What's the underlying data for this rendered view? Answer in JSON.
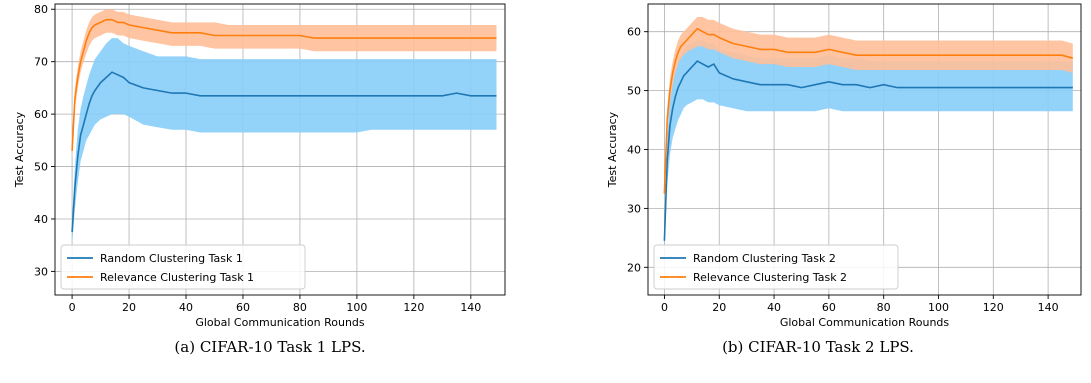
{
  "chart_data": [
    {
      "type": "line",
      "caption": "(a)  CIFAR-10 Task 1 LPS.",
      "xlabel": "Global Communication Rounds",
      "ylabel": "Test Accuracy",
      "xlim": [
        -6,
        152
      ],
      "ylim": [
        25.5,
        81
      ],
      "xticks": [
        0,
        20,
        40,
        60,
        80,
        100,
        120,
        140
      ],
      "yticks": [
        30,
        40,
        50,
        60,
        70,
        80
      ],
      "grid": true,
      "legend_position": "lower-left",
      "series": [
        {
          "name": "Random Clustering Task 1",
          "color": "#1f77b4",
          "band_color": "#87cefa",
          "x": [
            0,
            1,
            2,
            3,
            4,
            5,
            6,
            7,
            8,
            10,
            12,
            14,
            16,
            18,
            20,
            25,
            30,
            35,
            40,
            45,
            50,
            55,
            60,
            65,
            70,
            75,
            80,
            85,
            90,
            95,
            100,
            105,
            110,
            115,
            120,
            125,
            130,
            135,
            140,
            145,
            149
          ],
          "y": [
            37.5,
            46,
            52,
            56,
            58,
            60,
            62,
            63.5,
            64.5,
            66,
            67,
            68,
            67.5,
            67,
            66,
            65,
            64.5,
            64,
            64,
            63.5,
            63.5,
            63.5,
            63.5,
            63.5,
            63.5,
            63.5,
            63.5,
            63.5,
            63.5,
            63.5,
            63.5,
            63.5,
            63.5,
            63.5,
            63.5,
            63.5,
            63.5,
            64,
            63.5,
            63.5,
            63.5
          ],
          "lower": [
            35,
            42,
            47,
            51,
            53,
            55,
            56,
            57,
            58,
            59,
            59.5,
            60,
            60,
            60,
            59.5,
            58,
            57.5,
            57,
            57,
            56.5,
            56.5,
            56.5,
            56.5,
            56.5,
            56.5,
            56.5,
            56.5,
            56.5,
            56.5,
            56.5,
            56.5,
            57,
            57,
            57,
            57,
            57,
            57,
            57,
            57,
            57,
            57
          ],
          "upper": [
            40,
            50,
            57,
            61,
            63.5,
            65.5,
            67.5,
            69,
            70.5,
            72,
            73.5,
            74.5,
            74.5,
            73.5,
            73,
            72,
            71,
            71,
            71,
            70.5,
            70.5,
            70.5,
            70.5,
            70.5,
            70.5,
            70.5,
            70.5,
            70.5,
            70.5,
            70.5,
            70.5,
            70.5,
            70.5,
            70.5,
            70.5,
            70.5,
            70.5,
            70.5,
            70.5,
            70.5,
            70.5
          ]
        },
        {
          "name": "Relevance Clustering Task 1",
          "color": "#ff7f0e",
          "band_color": "#ffbf99",
          "x": [
            0,
            1,
            2,
            3,
            4,
            5,
            6,
            7,
            8,
            10,
            12,
            14,
            16,
            18,
            20,
            25,
            30,
            35,
            40,
            45,
            50,
            55,
            60,
            65,
            70,
            75,
            80,
            85,
            90,
            95,
            100,
            105,
            110,
            115,
            120,
            125,
            130,
            135,
            140,
            145,
            149
          ],
          "y": [
            53,
            63,
            67,
            70,
            72,
            74,
            75.5,
            76.5,
            77,
            77.5,
            78,
            78,
            77.5,
            77.5,
            77,
            76.5,
            76,
            75.5,
            75.5,
            75.5,
            75,
            75,
            75,
            75,
            75,
            75,
            75,
            74.5,
            74.5,
            74.5,
            74.5,
            74.5,
            74.5,
            74.5,
            74.5,
            74.5,
            74.5,
            74.5,
            74.5,
            74.5,
            74.5
          ],
          "lower": [
            51,
            61,
            65,
            68,
            70,
            71.5,
            73,
            74,
            74.5,
            75,
            75.5,
            75.5,
            75,
            75,
            74.5,
            74,
            73.5,
            73,
            73,
            73,
            72.5,
            72.5,
            72.5,
            72.5,
            72.5,
            72.5,
            72.5,
            72,
            72,
            72,
            72,
            72,
            72,
            72,
            72,
            72,
            72,
            72,
            72,
            72,
            72
          ],
          "upper": [
            55,
            65,
            69,
            72,
            74,
            76,
            77.5,
            78.5,
            79,
            79.5,
            80,
            80,
            79.5,
            79.5,
            79,
            78.5,
            78,
            77.5,
            77.5,
            77.5,
            77.5,
            77,
            77,
            77,
            77,
            77,
            77,
            77,
            77,
            77,
            77,
            77,
            77,
            77,
            77,
            77,
            77,
            77,
            77,
            77,
            77
          ]
        }
      ]
    },
    {
      "type": "line",
      "caption": "(b)  CIFAR-10 Task 2 LPS.",
      "xlabel": "Global Communication Rounds",
      "ylabel": "Test Accuracy",
      "xlim": [
        -6,
        152
      ],
      "ylim": [
        15.3,
        64.7
      ],
      "xticks": [
        0,
        20,
        40,
        60,
        80,
        100,
        120,
        140
      ],
      "yticks": [
        20,
        30,
        40,
        50,
        60
      ],
      "grid": true,
      "legend_position": "lower-left",
      "series": [
        {
          "name": "Random Clustering Task 2",
          "color": "#1f77b4",
          "band_color": "#87cefa",
          "x": [
            0,
            1,
            2,
            3,
            4,
            5,
            6,
            7,
            8,
            10,
            12,
            14,
            16,
            18,
            20,
            25,
            30,
            35,
            40,
            45,
            50,
            55,
            60,
            65,
            70,
            75,
            80,
            85,
            90,
            95,
            100,
            105,
            110,
            115,
            120,
            125,
            130,
            135,
            140,
            145,
            149
          ],
          "y": [
            24.5,
            38,
            44,
            47,
            49,
            50.5,
            51.5,
            52.5,
            53,
            54,
            55,
            54.5,
            54,
            54.5,
            53,
            52,
            51.5,
            51,
            51,
            51,
            50.5,
            51,
            51.5,
            51,
            51,
            50.5,
            51,
            50.5,
            50.5,
            50.5,
            50.5,
            50.5,
            50.5,
            50.5,
            50.5,
            50.5,
            50.5,
            50.5,
            50.5,
            50.5,
            50.5
          ],
          "lower": [
            23,
            34,
            39,
            42,
            43.5,
            45,
            46,
            47,
            47.5,
            48,
            48.5,
            48.5,
            48,
            48,
            47.5,
            47,
            46.5,
            46.5,
            46.5,
            46.5,
            46.5,
            46.5,
            47,
            46.5,
            46.5,
            46.5,
            46.5,
            46.5,
            46.5,
            46.5,
            46.5,
            46.5,
            46.5,
            46.5,
            46.5,
            46.5,
            46.5,
            46.5,
            46.5,
            46.5,
            46.5
          ],
          "upper": [
            26,
            42,
            48.5,
            51.5,
            53.5,
            55,
            56,
            57,
            57.5,
            58,
            58.5,
            58.5,
            58,
            58,
            57,
            56.5,
            56,
            55.5,
            55.5,
            55.5,
            55.5,
            55.5,
            56,
            55.5,
            55.5,
            55,
            55,
            55,
            55,
            55,
            55,
            55,
            55,
            55,
            55,
            55,
            55,
            55,
            55,
            55,
            55
          ]
        },
        {
          "name": "Relevance Clustering Task 2",
          "color": "#ff7f0e",
          "band_color": "#ffbf99",
          "x": [
            0,
            1,
            2,
            3,
            4,
            5,
            6,
            7,
            8,
            10,
            12,
            14,
            16,
            18,
            20,
            25,
            30,
            35,
            40,
            45,
            50,
            55,
            60,
            65,
            70,
            75,
            80,
            85,
            90,
            95,
            100,
            105,
            110,
            115,
            120,
            125,
            130,
            135,
            140,
            145,
            149
          ],
          "y": [
            32.5,
            45,
            50,
            53,
            55,
            56.5,
            57.5,
            58,
            58.5,
            59.5,
            60.5,
            60,
            59.5,
            59.5,
            59,
            58,
            57.5,
            57,
            57,
            56.5,
            56.5,
            56.5,
            57,
            56.5,
            56,
            56,
            56,
            56,
            56,
            56,
            56,
            56,
            56,
            56,
            56,
            56,
            56,
            56,
            56,
            56,
            55.5
          ],
          "lower": [
            31,
            43,
            48,
            51,
            53,
            54.5,
            55.5,
            56,
            56.5,
            57,
            57.5,
            57.5,
            57,
            57,
            56.5,
            55.5,
            55,
            54.5,
            54.5,
            54,
            54,
            54,
            54.5,
            54,
            53.5,
            53.5,
            53.5,
            53.5,
            53.5,
            53.5,
            53.5,
            53.5,
            53.5,
            53.5,
            53.5,
            53.5,
            53.5,
            53.5,
            53.5,
            53.5,
            53
          ],
          "upper": [
            34,
            47,
            52,
            55,
            57,
            58.5,
            59.5,
            60,
            60.5,
            61.5,
            62.5,
            62.5,
            62,
            62,
            61.5,
            60.5,
            60,
            59.5,
            59.5,
            59,
            59,
            59,
            59.5,
            59,
            58.5,
            58.5,
            58.5,
            58.5,
            58.5,
            58.5,
            58.5,
            58.5,
            58.5,
            58.5,
            58.5,
            58.5,
            58.5,
            58.5,
            58.5,
            58.5,
            58
          ]
        }
      ]
    }
  ]
}
